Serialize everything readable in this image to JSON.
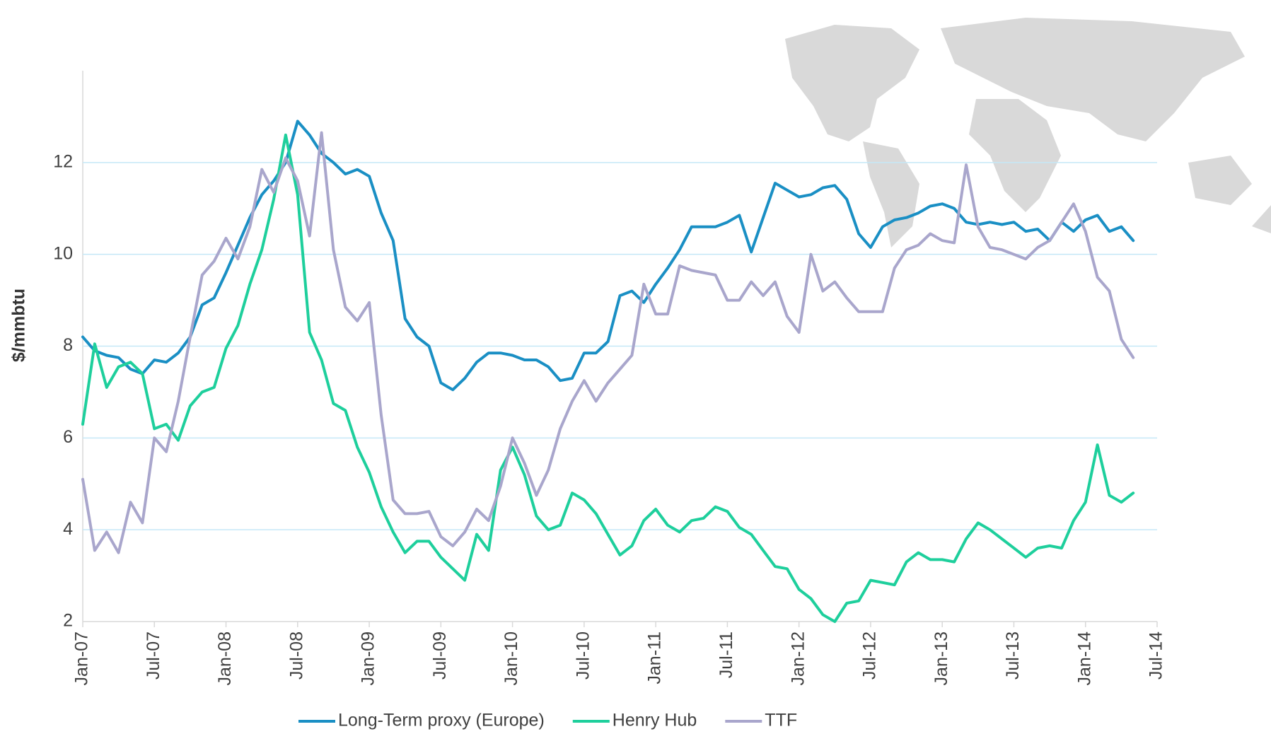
{
  "chart_data": {
    "type": "line",
    "y_label": "$/mmbtu",
    "categories": [
      "Jan-07",
      null,
      null,
      null,
      null,
      null,
      "Jul-07",
      null,
      null,
      null,
      null,
      null,
      "Jan-08",
      null,
      null,
      null,
      null,
      null,
      "Jul-08",
      null,
      null,
      null,
      null,
      null,
      "Jan-09",
      null,
      null,
      null,
      null,
      null,
      "Jul-09",
      null,
      null,
      null,
      null,
      null,
      "Jan-10",
      null,
      null,
      null,
      null,
      null,
      "Jul-10",
      null,
      null,
      null,
      null,
      null,
      "Jan-11",
      null,
      null,
      null,
      null,
      null,
      "Jul-11",
      null,
      null,
      null,
      null,
      null,
      "Jan-12",
      null,
      null,
      null,
      null,
      null,
      "Jul-12",
      null,
      null,
      null,
      null,
      null,
      "Jan-13",
      null,
      null,
      null,
      null,
      null,
      "Jul-13",
      null,
      null,
      null,
      null,
      null,
      "Jan-14",
      null,
      null,
      null,
      null,
      null,
      "Jul-14"
    ],
    "series": [
      {
        "name": "Long-Term proxy (Europe)",
        "color": "#1a8fc4",
        "values": [
          8.2,
          7.9,
          7.8,
          7.75,
          7.5,
          7.4,
          7.7,
          7.65,
          7.85,
          8.2,
          8.9,
          9.05,
          9.6,
          10.2,
          10.8,
          11.3,
          11.6,
          12.0,
          12.9,
          12.6,
          12.2,
          12.0,
          11.75,
          11.85,
          11.7,
          10.9,
          10.3,
          8.6,
          8.2,
          8.0,
          7.2,
          7.05,
          7.3,
          7.65,
          7.85,
          7.85,
          7.8,
          7.7,
          7.7,
          7.55,
          7.25,
          7.3,
          7.85,
          7.85,
          8.1,
          9.1,
          9.2,
          8.95,
          9.35,
          9.7,
          10.1,
          10.6,
          10.6,
          10.6,
          10.7,
          10.85,
          10.05,
          10.8,
          11.55,
          11.4,
          11.25,
          11.3,
          11.45,
          11.5,
          11.2,
          10.45,
          10.15,
          10.6,
          10.75,
          10.8,
          10.9,
          11.05,
          11.1,
          11.0,
          10.7,
          10.65,
          10.7,
          10.65,
          10.7,
          10.5,
          10.55,
          10.3,
          10.7,
          10.5,
          10.75,
          10.85,
          10.5,
          10.6,
          10.3,
          null,
          null
        ]
      },
      {
        "name": "Henry Hub",
        "color": "#1ecf9c",
        "values": [
          6.3,
          8.05,
          7.1,
          7.55,
          7.65,
          7.4,
          6.2,
          6.3,
          5.95,
          6.7,
          7.0,
          7.1,
          7.95,
          8.45,
          9.35,
          10.1,
          11.2,
          12.6,
          11.3,
          8.3,
          7.7,
          6.75,
          6.6,
          5.8,
          5.25,
          4.5,
          3.95,
          3.5,
          3.75,
          3.75,
          3.4,
          3.15,
          2.9,
          3.9,
          3.55,
          5.3,
          5.8,
          5.2,
          4.3,
          4.0,
          4.1,
          4.8,
          4.65,
          4.35,
          3.9,
          3.45,
          3.65,
          4.2,
          4.45,
          4.1,
          3.95,
          4.2,
          4.25,
          4.5,
          4.4,
          4.05,
          3.9,
          3.55,
          3.2,
          3.15,
          2.7,
          2.5,
          2.15,
          2.0,
          2.4,
          2.45,
          2.9,
          2.85,
          2.8,
          3.3,
          3.5,
          3.35,
          3.35,
          3.3,
          3.8,
          4.15,
          4.0,
          3.8,
          3.6,
          3.4,
          3.6,
          3.65,
          3.6,
          4.2,
          4.6,
          5.85,
          4.75,
          4.6,
          4.8,
          null,
          null
        ]
      },
      {
        "name": "TTF",
        "color": "#a9a6cc",
        "values": [
          5.1,
          3.55,
          3.95,
          3.5,
          4.6,
          4.15,
          6.0,
          5.7,
          6.8,
          8.2,
          9.55,
          9.85,
          10.35,
          9.9,
          10.6,
          11.85,
          11.35,
          12.1,
          11.6,
          10.4,
          12.65,
          10.1,
          8.85,
          8.55,
          8.95,
          6.5,
          4.65,
          4.35,
          4.35,
          4.4,
          3.85,
          3.65,
          3.95,
          4.45,
          4.2,
          4.95,
          6.0,
          5.45,
          4.75,
          5.3,
          6.2,
          6.8,
          7.25,
          6.8,
          7.2,
          7.5,
          7.8,
          9.35,
          8.7,
          8.7,
          9.75,
          9.65,
          9.6,
          9.55,
          9.0,
          9.0,
          9.4,
          9.1,
          9.4,
          8.65,
          8.3,
          10.0,
          9.2,
          9.4,
          9.05,
          8.75,
          8.75,
          8.75,
          9.7,
          10.1,
          10.2,
          10.45,
          10.3,
          10.25,
          11.95,
          10.6,
          10.15,
          10.1,
          10.0,
          9.9,
          10.15,
          10.3,
          10.7,
          11.1,
          10.5,
          9.5,
          9.2,
          8.15,
          7.75,
          null,
          null
        ]
      }
    ],
    "ylim": [
      2,
      14
    ],
    "yticks": [
      2,
      4,
      6,
      8,
      10,
      12
    ],
    "grid": true,
    "legend": "bottom"
  }
}
